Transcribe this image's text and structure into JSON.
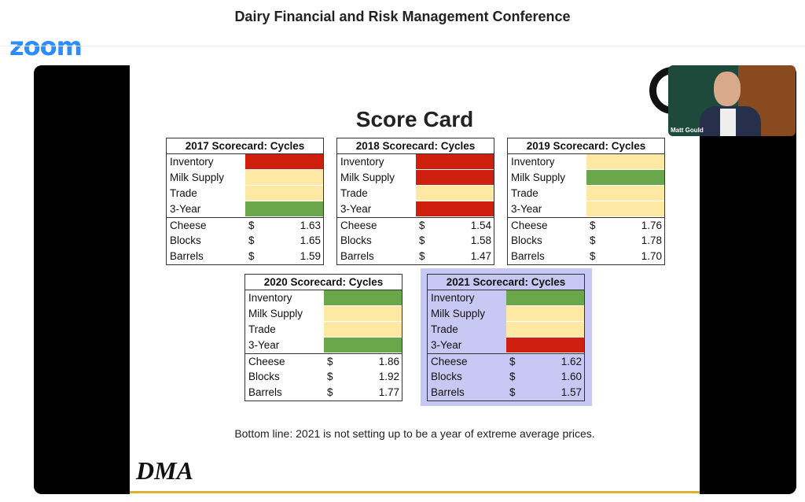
{
  "header": {
    "title": "Dairy Financial and Risk Management Conference",
    "logo": "zoom"
  },
  "participant": {
    "name": "Matt Gould"
  },
  "slide": {
    "title": "Score Card",
    "bottom_line": "Bottom line: 2021 is not setting up to be a year of extreme average prices.",
    "logo": "DMA",
    "colors": {
      "red": "#cf1f0f",
      "yellow": "#fde9a3",
      "green": "#6aa64a",
      "highlight": "#c8c8f4"
    },
    "cards": [
      {
        "title": "2017 Scorecard: Cycles",
        "signals": [
          {
            "label": "Inventory",
            "status": "red"
          },
          {
            "label": "Milk Supply",
            "status": "yellow"
          },
          {
            "label": "Trade",
            "status": "yellow"
          },
          {
            "label": "3-Year",
            "status": "green"
          }
        ],
        "prices": [
          {
            "label": "Cheese",
            "currency": "$",
            "value": "1.63"
          },
          {
            "label": "Blocks",
            "currency": "$",
            "value": "1.65"
          },
          {
            "label": "Barrels",
            "currency": "$",
            "value": "1.59"
          }
        ]
      },
      {
        "title": "2018 Scorecard: Cycles",
        "signals": [
          {
            "label": "Inventory",
            "status": "red"
          },
          {
            "label": "Milk Supply",
            "status": "red"
          },
          {
            "label": "Trade",
            "status": "yellow"
          },
          {
            "label": "3-Year",
            "status": "red"
          }
        ],
        "prices": [
          {
            "label": "Cheese",
            "currency": "$",
            "value": "1.54"
          },
          {
            "label": "Blocks",
            "currency": "$",
            "value": "1.58"
          },
          {
            "label": "Barrels",
            "currency": "$",
            "value": "1.47"
          }
        ]
      },
      {
        "title": "2019 Scorecard: Cycles",
        "signals": [
          {
            "label": "Inventory",
            "status": "yellow"
          },
          {
            "label": "Milk Supply",
            "status": "green"
          },
          {
            "label": "Trade",
            "status": "yellow"
          },
          {
            "label": "3-Year",
            "status": "yellow"
          }
        ],
        "prices": [
          {
            "label": "Cheese",
            "currency": "$",
            "value": "1.76"
          },
          {
            "label": "Blocks",
            "currency": "$",
            "value": "1.78"
          },
          {
            "label": "Barrels",
            "currency": "$",
            "value": "1.70"
          }
        ]
      },
      {
        "title": "2020 Scorecard: Cycles",
        "signals": [
          {
            "label": "Inventory",
            "status": "green"
          },
          {
            "label": "Milk Supply",
            "status": "yellow"
          },
          {
            "label": "Trade",
            "status": "yellow"
          },
          {
            "label": "3-Year",
            "status": "green"
          }
        ],
        "prices": [
          {
            "label": "Cheese",
            "currency": "$",
            "value": "1.86"
          },
          {
            "label": "Blocks",
            "currency": "$",
            "value": "1.92"
          },
          {
            "label": "Barrels",
            "currency": "$",
            "value": "1.77"
          }
        ]
      },
      {
        "title": "2021 Scorecard: Cycles",
        "highlight": true,
        "signals": [
          {
            "label": "Inventory",
            "status": "green"
          },
          {
            "label": "Milk Supply",
            "status": "yellow"
          },
          {
            "label": "Trade",
            "status": "yellow"
          },
          {
            "label": "3-Year",
            "status": "red"
          }
        ],
        "prices": [
          {
            "label": "Cheese",
            "currency": "$",
            "value": "1.62"
          },
          {
            "label": "Blocks",
            "currency": "$",
            "value": "1.60"
          },
          {
            "label": "Barrels",
            "currency": "$",
            "value": "1.57"
          }
        ]
      }
    ]
  }
}
